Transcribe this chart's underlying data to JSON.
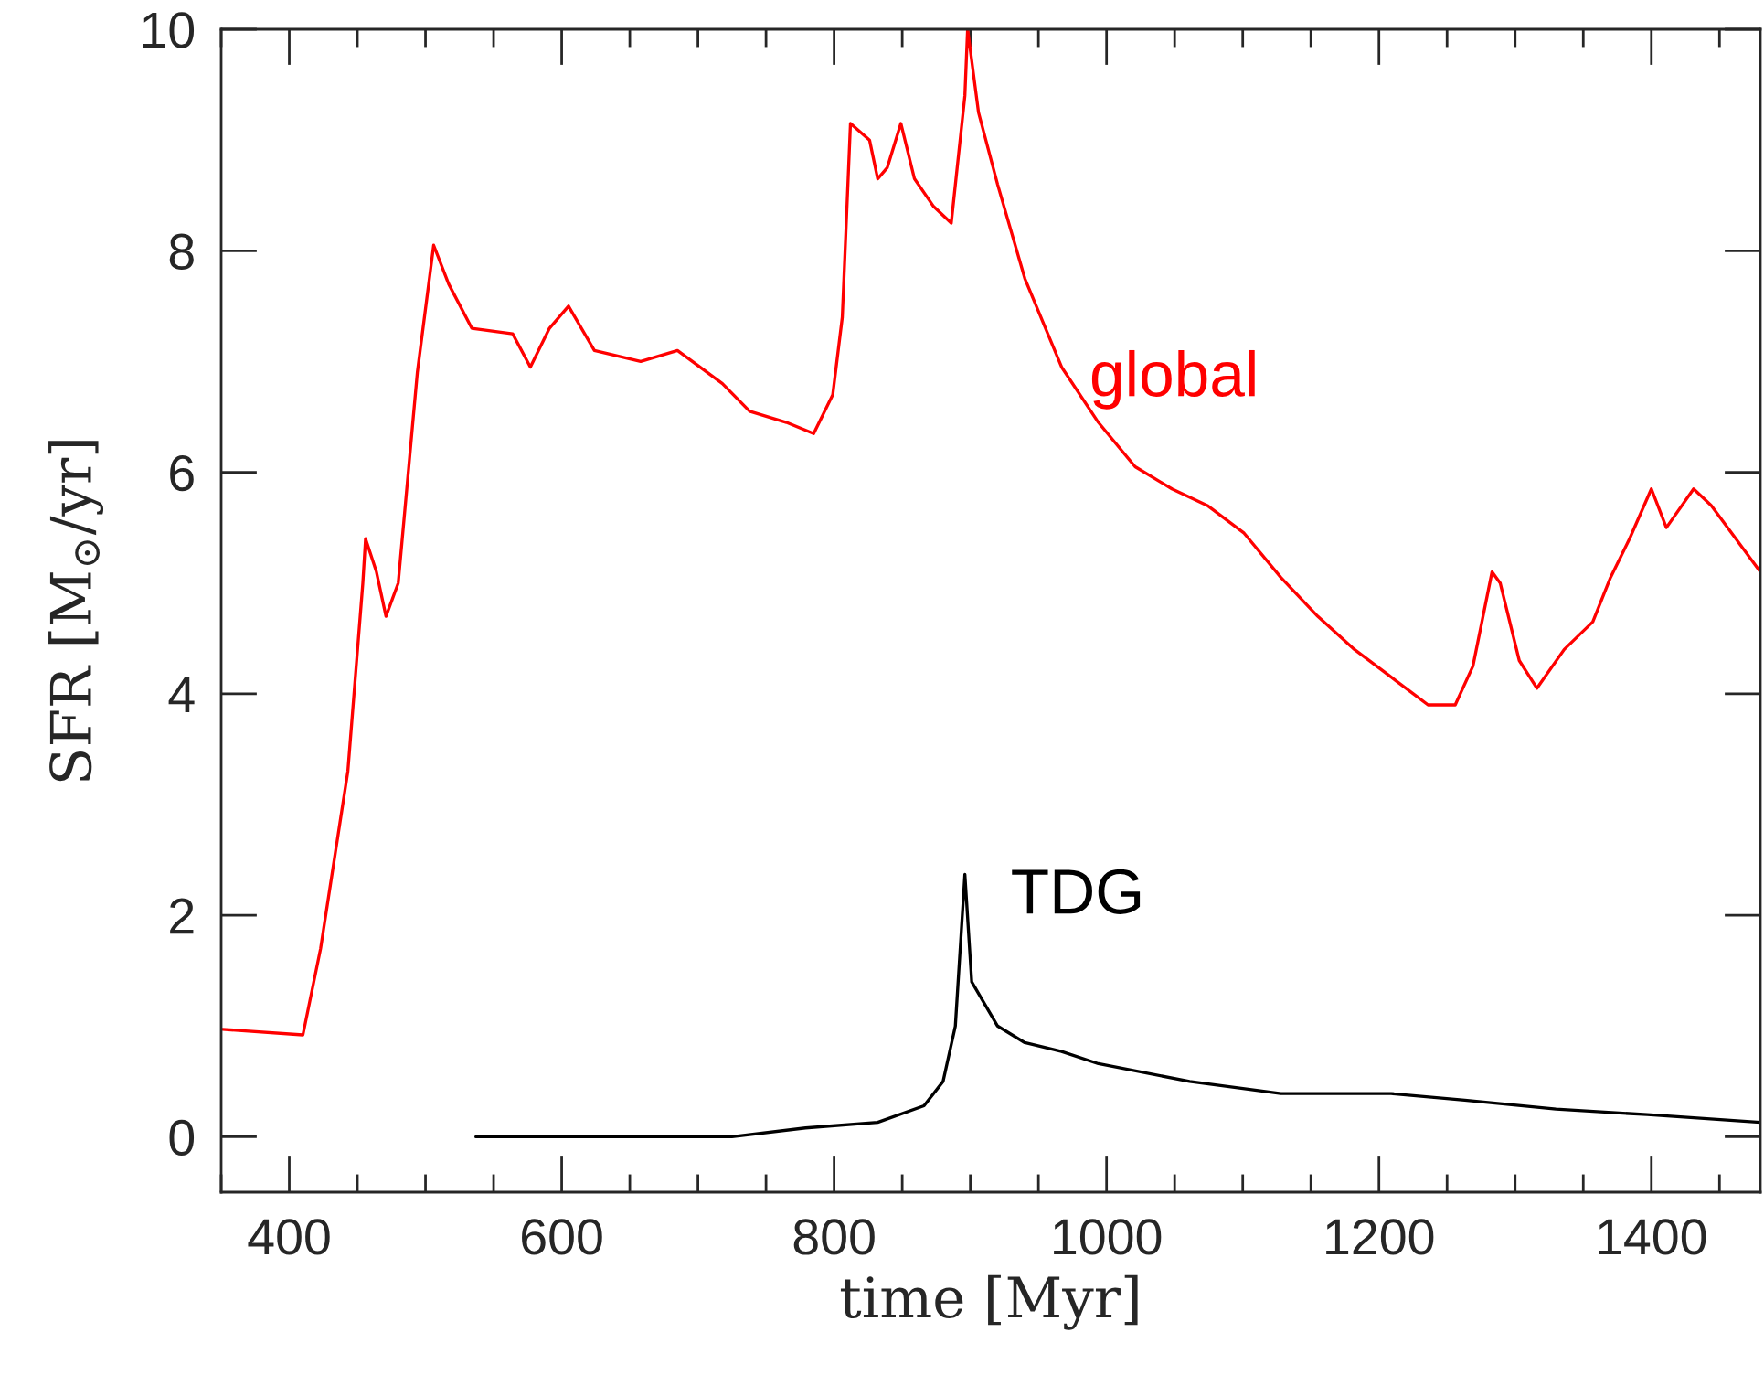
{
  "chart_data": {
    "type": "line",
    "xlabel": "time [Myr]",
    "ylabel": "SFR [M$_{⊙}$/yr]",
    "xlim": [
      350,
      1480
    ],
    "xticks": [
      400,
      600,
      800,
      1000,
      1200,
      1400
    ],
    "ylim": [
      -0.5,
      10
    ],
    "yticks": [
      0,
      2,
      4,
      6,
      8,
      10
    ],
    "grid": false,
    "legend": false,
    "line_style": "solid",
    "marker": "none",
    "series": [
      {
        "name": "global",
        "color": "#ff0000",
        "x": [
          351,
          410,
          423,
          443,
          454,
          456,
          464,
          471,
          480,
          494,
          506,
          517,
          534,
          564,
          577,
          591,
          605,
          624,
          658,
          685,
          718,
          738,
          765,
          785,
          799,
          806,
          812,
          826,
          832,
          839,
          849,
          859,
          873,
          886,
          896,
          898,
          906,
          920,
          940,
          967,
          994,
          1021,
          1048,
          1074,
          1101,
          1128,
          1155,
          1182,
          1209,
          1236,
          1256,
          1269,
          1283,
          1289,
          1303,
          1316,
          1336,
          1357,
          1370,
          1384,
          1400,
          1411,
          1431,
          1444,
          1462,
          1480
        ],
        "values": [
          0.97,
          0.92,
          1.7,
          3.3,
          5.0,
          5.4,
          5.1,
          4.7,
          5.0,
          6.9,
          8.05,
          7.7,
          7.3,
          7.25,
          6.95,
          7.3,
          7.5,
          7.1,
          7.0,
          7.1,
          6.8,
          6.55,
          6.45,
          6.35,
          6.7,
          7.4,
          9.15,
          9.0,
          8.65,
          8.75,
          9.15,
          8.65,
          8.4,
          8.25,
          9.4,
          10.0,
          9.25,
          8.6,
          7.75,
          6.95,
          6.45,
          6.05,
          5.85,
          5.7,
          5.45,
          5.05,
          4.7,
          4.4,
          4.15,
          3.9,
          3.9,
          4.25,
          5.1,
          5.0,
          4.3,
          4.05,
          4.4,
          4.65,
          5.05,
          5.4,
          5.85,
          5.5,
          5.85,
          5.7,
          5.4,
          5.1
        ]
      },
      {
        "name": "TDG",
        "color": "#000000",
        "x": [
          537,
          725,
          779,
          832,
          866,
          880,
          889,
          896,
          901,
          920,
          940,
          967,
          994,
          1061,
          1128,
          1209,
          1263,
          1330,
          1397,
          1480
        ],
        "values": [
          0.0,
          0.0,
          0.08,
          0.13,
          0.28,
          0.5,
          1.0,
          2.37,
          1.4,
          1.0,
          0.85,
          0.77,
          0.66,
          0.5,
          0.39,
          0.39,
          0.33,
          0.25,
          0.2,
          0.13
        ]
      }
    ]
  }
}
